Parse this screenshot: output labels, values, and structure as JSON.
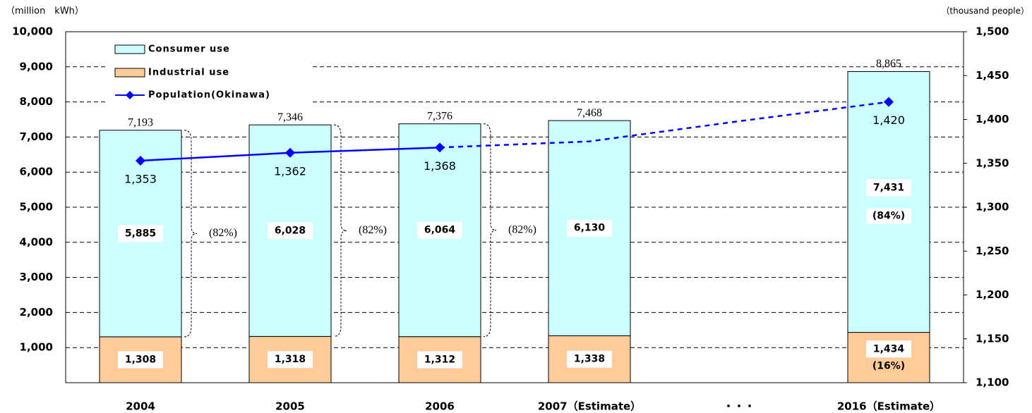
{
  "chart_data": {
    "type": "stacked_bar_line",
    "y_axis_label": "（million　kWh）",
    "y2_axis_label": "（thousand people）",
    "categories": [
      "2004",
      "2005",
      "2006",
      "2007（Estimate）",
      "・・・",
      "2016（Estimate）"
    ],
    "series": [
      {
        "name": "Industrial use",
        "color": "#ffcc99",
        "values": [
          1308,
          1318,
          1312,
          1338,
          null,
          1434
        ],
        "value_labels": [
          "1,308",
          "1,318",
          "1,312",
          "1,338",
          null,
          "1,434"
        ],
        "share_labels": [
          null,
          null,
          null,
          null,
          null,
          "(16%)"
        ]
      },
      {
        "name": "Consumer use",
        "color": "#ccffff",
        "values": [
          5885,
          6028,
          6064,
          6130,
          null,
          7431
        ],
        "value_labels": [
          "5,885",
          "6,028",
          "6,064",
          "6,130",
          null,
          "7,431"
        ],
        "share_labels": [
          null,
          null,
          null,
          null,
          null,
          "(84%)"
        ]
      },
      {
        "name": "Population(Okinawa)",
        "color": "#0000ff",
        "axis": "y2",
        "type": "line",
        "values": [
          1353,
          1362,
          1368,
          1375,
          1398,
          1420
        ],
        "value_labels": [
          "1,353",
          "1,362",
          "1,368",
          null,
          null,
          "1,420"
        ],
        "dashed_from_index": 2
      }
    ],
    "totals": [
      7193,
      7346,
      7376,
      7468,
      null,
      8865
    ],
    "total_labels": [
      "7,193",
      "7,346",
      "7,376",
      "7,468",
      null,
      "8,865"
    ],
    "brace_labels": [
      "(82%)",
      "(82%)",
      "(82%)",
      null,
      null,
      null
    ],
    "ylim": [
      0,
      10000
    ],
    "yticks": [
      {
        "value": 1000,
        "label": "1,000"
      },
      {
        "value": 2000,
        "label": "2,000"
      },
      {
        "value": 3000,
        "label": "3,000"
      },
      {
        "value": 4000,
        "label": "4,000"
      },
      {
        "value": 5000,
        "label": "5,000"
      },
      {
        "value": 6000,
        "label": "6,000"
      },
      {
        "value": 7000,
        "label": "7,000"
      },
      {
        "value": 8000,
        "label": "8,000"
      },
      {
        "value": 9000,
        "label": "9,000"
      },
      {
        "value": 10000,
        "label": "10,000"
      }
    ],
    "y2lim": [
      1100,
      1500
    ],
    "y2ticks": [
      {
        "value": 1100,
        "label": "1,100"
      },
      {
        "value": 1150,
        "label": "1,150"
      },
      {
        "value": 1200,
        "label": "1,200"
      },
      {
        "value": 1250,
        "label": "1,250"
      },
      {
        "value": 1300,
        "label": "1,300"
      },
      {
        "value": 1350,
        "label": "1,350"
      },
      {
        "value": 1400,
        "label": "1,400"
      },
      {
        "value": 1450,
        "label": "1,450"
      },
      {
        "value": 1500,
        "label": "1,500"
      }
    ],
    "grid": true,
    "legend": "top-left"
  }
}
